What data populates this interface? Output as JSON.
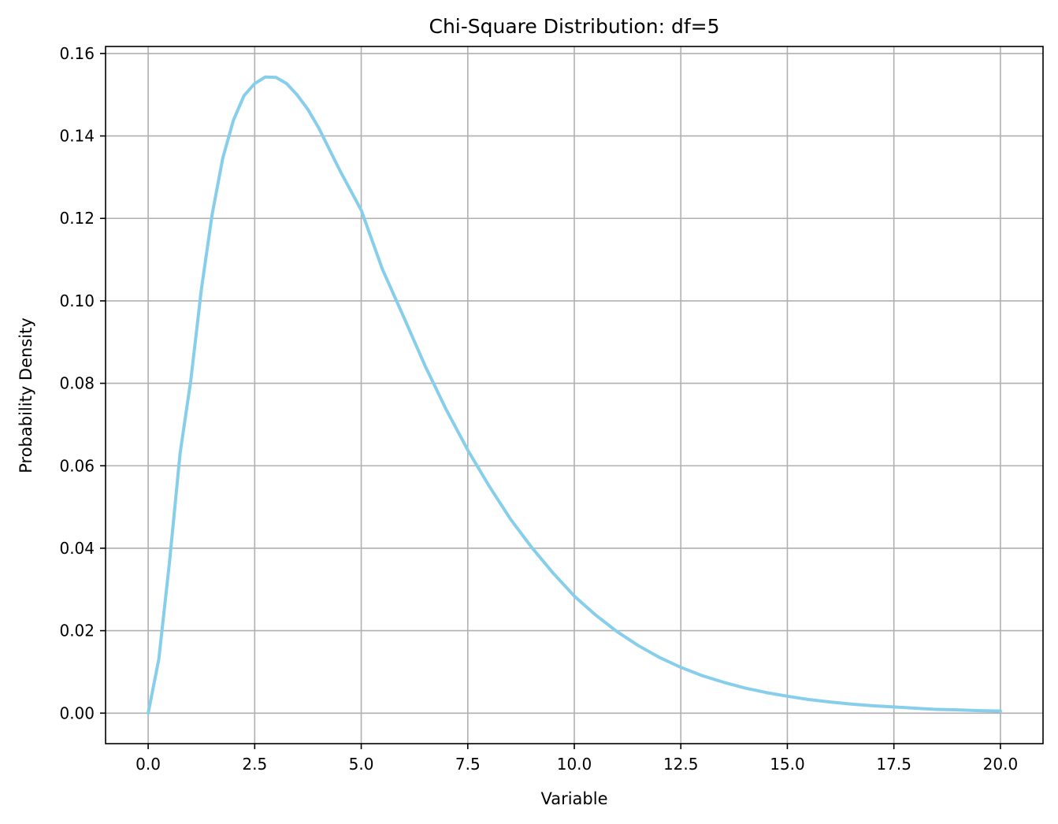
{
  "chart_data": {
    "type": "line",
    "title": "Chi-Square Distribution: df=5",
    "xlabel": "Variable",
    "ylabel": "Probability Density",
    "xlim": [
      -1.0,
      21.0
    ],
    "ylim": [
      -0.0074,
      0.1617
    ],
    "grid": true,
    "legend": "none",
    "colors": {
      "line": "#87CEEB",
      "grid": "#b0b0b0",
      "axes": "#000000"
    },
    "x_ticks": [
      {
        "value": 0.0,
        "label": "0.0"
      },
      {
        "value": 2.5,
        "label": "2.5"
      },
      {
        "value": 5.0,
        "label": "5.0"
      },
      {
        "value": 7.5,
        "label": "7.5"
      },
      {
        "value": 10.0,
        "label": "10.0"
      },
      {
        "value": 12.5,
        "label": "12.5"
      },
      {
        "value": 15.0,
        "label": "15.0"
      },
      {
        "value": 17.5,
        "label": "17.5"
      },
      {
        "value": 20.0,
        "label": "20.0"
      }
    ],
    "y_ticks": [
      {
        "value": 0.0,
        "label": "0.00"
      },
      {
        "value": 0.02,
        "label": "0.02"
      },
      {
        "value": 0.04,
        "label": "0.04"
      },
      {
        "value": 0.06,
        "label": "0.06"
      },
      {
        "value": 0.08,
        "label": "0.08"
      },
      {
        "value": 0.1,
        "label": "0.10"
      },
      {
        "value": 0.12,
        "label": "0.12"
      },
      {
        "value": 0.14,
        "label": "0.14"
      },
      {
        "value": 0.16,
        "label": "0.16"
      }
    ],
    "series": [
      {
        "x": [
          0.0,
          0.25,
          0.5,
          0.75,
          1.0,
          1.25,
          1.5,
          1.75,
          2.0,
          2.25,
          2.5,
          2.75,
          3.0,
          3.25,
          3.5,
          3.75,
          4.0,
          4.5,
          5.0,
          5.5,
          6.0,
          6.5,
          7.0,
          7.5,
          8.0,
          8.5,
          9.0,
          9.5,
          10.0,
          10.5,
          11.0,
          11.5,
          12.0,
          12.5,
          13.0,
          13.5,
          14.0,
          14.5,
          15.0,
          15.5,
          16.0,
          16.5,
          17.0,
          17.5,
          18.0,
          18.5,
          19.0,
          19.5,
          20.0
        ],
        "y": [
          0.0,
          0.0131,
          0.0366,
          0.0631,
          0.0807,
          0.1029,
          0.1209,
          0.1346,
          0.1438,
          0.1498,
          0.1527,
          0.1543,
          0.1542,
          0.1527,
          0.1499,
          0.1464,
          0.142,
          0.1316,
          0.122,
          0.1076,
          0.096,
          0.0842,
          0.0735,
          0.0638,
          0.0551,
          0.0471,
          0.0402,
          0.034,
          0.0284,
          0.0238,
          0.0198,
          0.0164,
          0.0135,
          0.0111,
          0.0091,
          0.0075,
          0.0061,
          0.005,
          0.0041,
          0.0033,
          0.0027,
          0.0022,
          0.0018,
          0.0015,
          0.0012,
          0.0009,
          0.0008,
          0.0006,
          0.0005
        ]
      }
    ]
  }
}
